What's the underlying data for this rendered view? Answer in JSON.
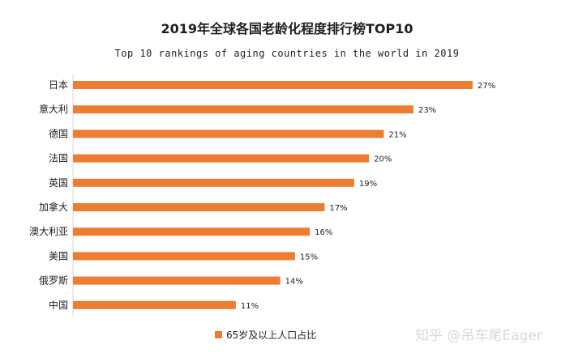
{
  "chart_data": {
    "type": "bar",
    "orientation": "horizontal",
    "title": "2019年全球各国老龄化程度排行榜TOP10",
    "subtitle": "Top 10 rankings of aging countries in the world in 2019",
    "categories": [
      "日本",
      "意大利",
      "德国",
      "法国",
      "英国",
      "加拿大",
      "澳大利亚",
      "美国",
      "俄罗斯",
      "中国"
    ],
    "series": [
      {
        "name": "65岁及以上人口占比",
        "values": [
          27,
          23,
          21,
          20,
          19,
          17,
          16,
          15,
          14,
          11
        ],
        "labels": [
          "27%",
          "23%",
          "21%",
          "20%",
          "19%",
          "17%",
          "16%",
          "15%",
          "14%",
          "11%"
        ],
        "color": "#ed7d31"
      }
    ],
    "xlim": [
      0,
      27
    ],
    "grid": false,
    "legend_position": "bottom"
  },
  "watermark": "知乎 @吊车尾Eager"
}
